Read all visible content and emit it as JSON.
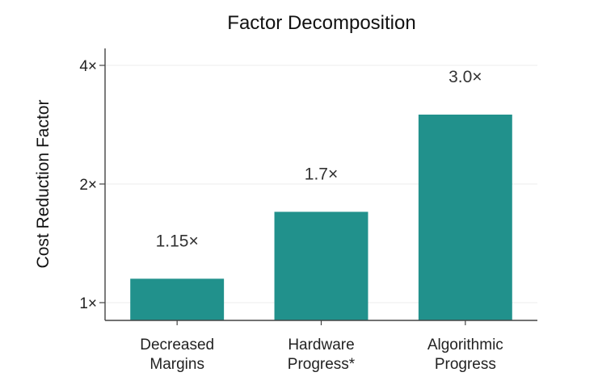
{
  "chart_data": {
    "type": "bar",
    "title": "Factor Decomposition",
    "xlabel": "",
    "ylabel": "Cost Reduction Factor",
    "y_scale": "log2",
    "ylim": [
      0.95,
      4.4
    ],
    "yticks": [
      1,
      2,
      4
    ],
    "ytick_labels": [
      "1×",
      "2×",
      "4×"
    ],
    "categories": [
      [
        "Decreased",
        "Margins"
      ],
      [
        "Hardware",
        "Progress*"
      ],
      [
        "Algorithmic",
        "Progress"
      ]
    ],
    "values": [
      1.15,
      1.7,
      3.0
    ],
    "value_labels": [
      "1.15×",
      "1.7×",
      "3.0×"
    ],
    "bar_color": "#21918c",
    "grid": "horizontal (light)",
    "legend": "none"
  }
}
